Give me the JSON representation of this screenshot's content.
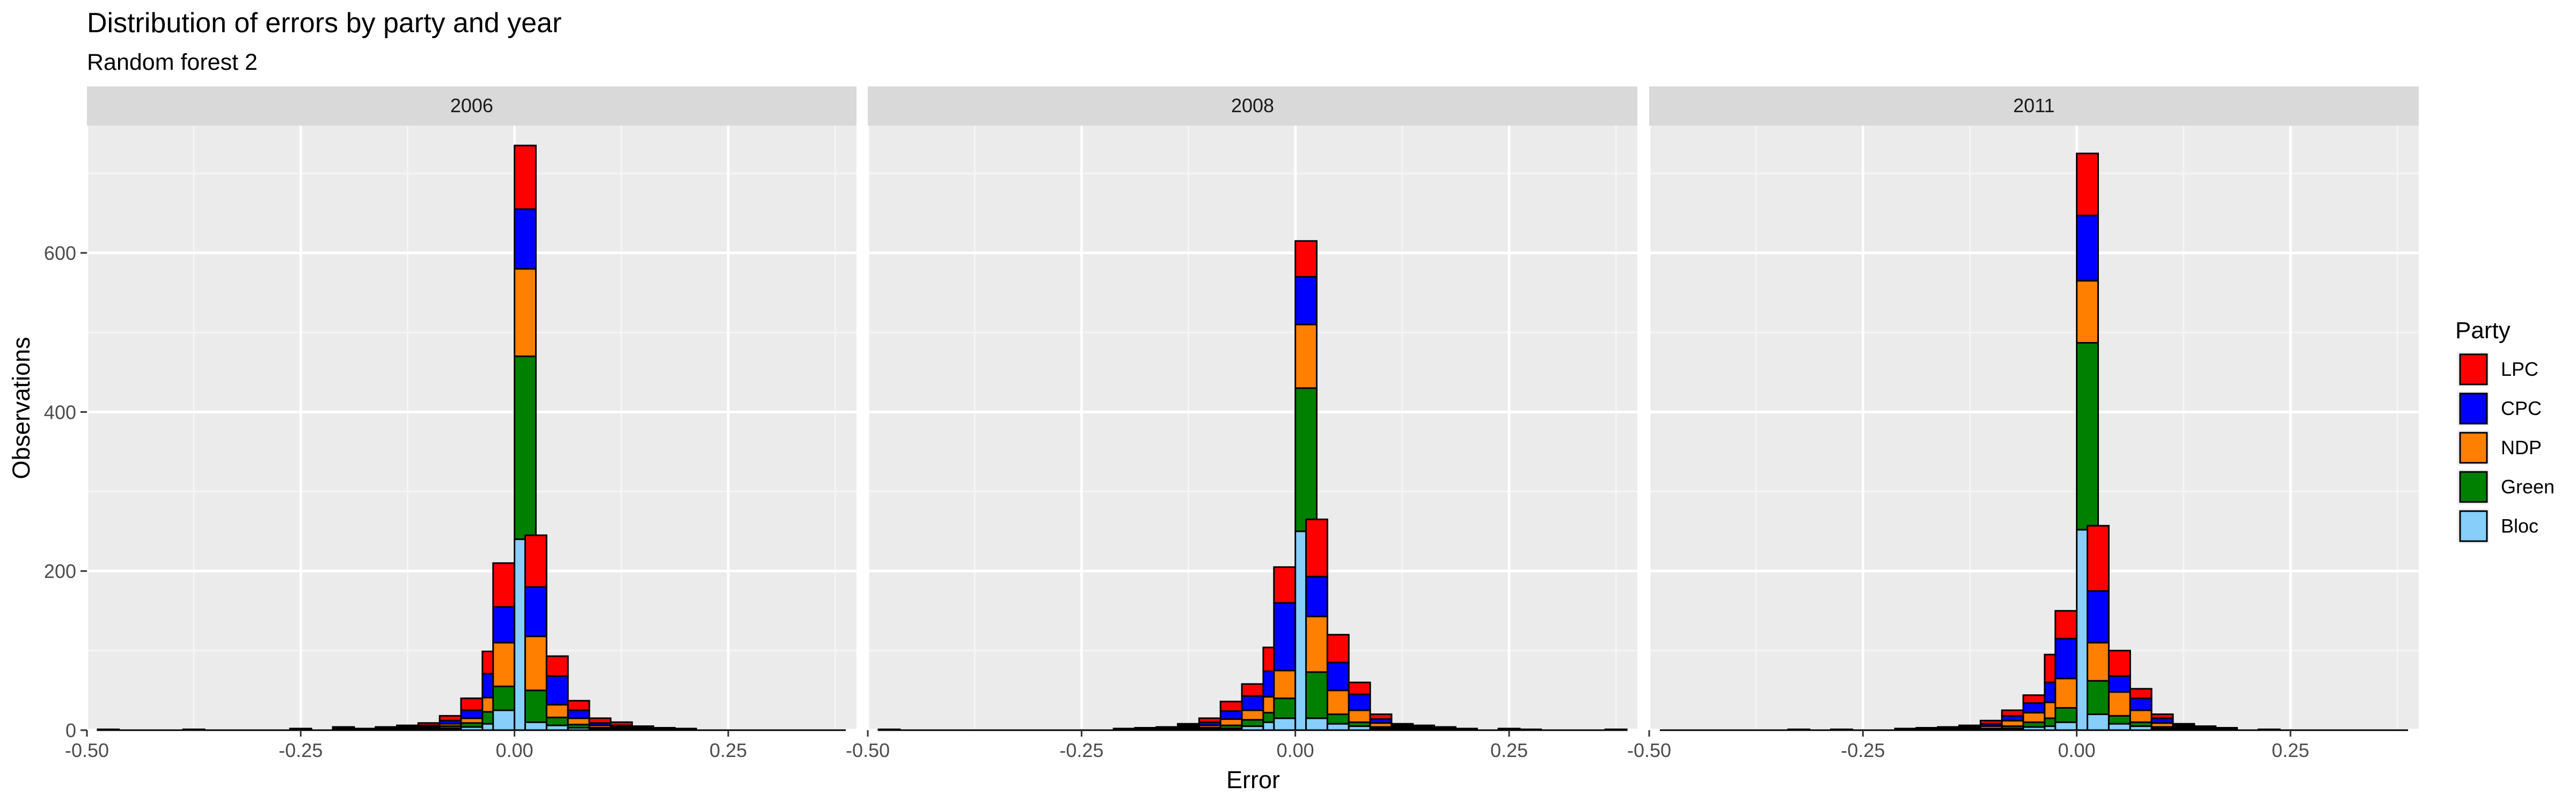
{
  "chart_data": {
    "type": "bar",
    "title": "Distribution of errors by party and year",
    "subtitle": "Random forest 2",
    "xlabel": "Error",
    "ylabel": "Observations",
    "xlim": [
      -0.5,
      0.4
    ],
    "ylim": [
      0,
      760
    ],
    "x_ticks": [
      -0.5,
      -0.25,
      0.0,
      0.25
    ],
    "x_tick_labels": [
      "-0.50",
      "-0.25",
      "0.00",
      "0.25"
    ],
    "y_ticks": [
      0,
      200,
      400,
      600
    ],
    "y_tick_labels": [
      "0",
      "200",
      "400",
      "600"
    ],
    "grid": true,
    "stacked": true,
    "bin_width": 0.025,
    "legend": {
      "title": "Party",
      "position": "right",
      "entries": [
        "LPC",
        "CPC",
        "NDP",
        "Green",
        "Bloc"
      ]
    },
    "series_colors": {
      "LPC": "#ff0000",
      "CPC": "#0000ff",
      "NDP": "#ff7f00",
      "Green": "#008000",
      "Bloc": "#87cefa"
    },
    "stack_order_bottom_to_top": [
      "Bloc",
      "Green",
      "NDP",
      "CPC",
      "LPC"
    ],
    "panels": [
      {
        "facet_label": "2006",
        "bins": [
          {
            "x": -0.475,
            "values": {
              "Bloc": 0,
              "Green": 0,
              "NDP": 0,
              "CPC": 0,
              "LPC": 1
            }
          },
          {
            "x": -0.375,
            "values": {
              "Bloc": 0,
              "Green": 0,
              "NDP": 1,
              "CPC": 0,
              "LPC": 0
            }
          },
          {
            "x": -0.25,
            "values": {
              "Bloc": 0,
              "Green": 0,
              "NDP": 1,
              "CPC": 0,
              "LPC": 1
            }
          },
          {
            "x": -0.2,
            "values": {
              "Bloc": 0,
              "Green": 1,
              "NDP": 1,
              "CPC": 1,
              "LPC": 1
            }
          },
          {
            "x": -0.175,
            "values": {
              "Bloc": 0,
              "Green": 0,
              "NDP": 1,
              "CPC": 0,
              "LPC": 1
            }
          },
          {
            "x": -0.15,
            "values": {
              "Bloc": 0,
              "Green": 1,
              "NDP": 1,
              "CPC": 1,
              "LPC": 1
            }
          },
          {
            "x": -0.125,
            "values": {
              "Bloc": 1,
              "Green": 1,
              "NDP": 1,
              "CPC": 1,
              "LPC": 2
            }
          },
          {
            "x": -0.1,
            "values": {
              "Bloc": 1,
              "Green": 1,
              "NDP": 2,
              "CPC": 2,
              "LPC": 3
            }
          },
          {
            "x": -0.075,
            "values": {
              "Bloc": 2,
              "Green": 3,
              "NDP": 3,
              "CPC": 4,
              "LPC": 6
            }
          },
          {
            "x": -0.05,
            "values": {
              "Bloc": 4,
              "Green": 5,
              "NDP": 6,
              "CPC": 10,
              "LPC": 15
            }
          },
          {
            "x": -0.025,
            "values": {
              "Bloc": 8,
              "Green": 15,
              "NDP": 18,
              "CPC": 30,
              "LPC": 28
            }
          },
          {
            "x": 0.0,
            "values": {
              "Bloc": 25,
              "Green": 30,
              "NDP": 55,
              "CPC": 45,
              "LPC": 55
            }
          },
          {
            "x": 0.0,
            "values": {
              "Bloc": 240,
              "Green": 230,
              "NDP": 110,
              "CPC": 75,
              "LPC": 80
            }
          },
          {
            "x": 0.025,
            "values": {
              "Bloc": 10,
              "Green": 40,
              "NDP": 68,
              "CPC": 62,
              "LPC": 65
            }
          },
          {
            "x": 0.05,
            "values": {
              "Bloc": 6,
              "Green": 10,
              "NDP": 16,
              "CPC": 36,
              "LPC": 25
            }
          },
          {
            "x": 0.075,
            "values": {
              "Bloc": 3,
              "Green": 4,
              "NDP": 8,
              "CPC": 10,
              "LPC": 12
            }
          },
          {
            "x": 0.1,
            "values": {
              "Bloc": 1,
              "Green": 2,
              "NDP": 3,
              "CPC": 3,
              "LPC": 6
            }
          },
          {
            "x": 0.125,
            "values": {
              "Bloc": 1,
              "Green": 1,
              "NDP": 2,
              "CPC": 2,
              "LPC": 4
            }
          },
          {
            "x": 0.15,
            "values": {
              "Bloc": 0,
              "Green": 1,
              "NDP": 1,
              "CPC": 1,
              "LPC": 2
            }
          },
          {
            "x": 0.175,
            "values": {
              "Bloc": 0,
              "Green": 0,
              "NDP": 1,
              "CPC": 1,
              "LPC": 1
            }
          },
          {
            "x": 0.2,
            "values": {
              "Bloc": 0,
              "Green": 0,
              "NDP": 0,
              "CPC": 1,
              "LPC": 1
            }
          }
        ]
      },
      {
        "facet_label": "2008",
        "bins": [
          {
            "x": -0.475,
            "values": {
              "Bloc": 0,
              "Green": 0,
              "NDP": 1,
              "CPC": 0,
              "LPC": 0
            }
          },
          {
            "x": -0.2,
            "values": {
              "Bloc": 0,
              "Green": 0,
              "NDP": 1,
              "CPC": 0,
              "LPC": 1
            }
          },
          {
            "x": -0.175,
            "values": {
              "Bloc": 0,
              "Green": 1,
              "NDP": 1,
              "CPC": 0,
              "LPC": 1
            }
          },
          {
            "x": -0.15,
            "values": {
              "Bloc": 0,
              "Green": 1,
              "NDP": 1,
              "CPC": 1,
              "LPC": 1
            }
          },
          {
            "x": -0.125,
            "values": {
              "Bloc": 1,
              "Green": 1,
              "NDP": 2,
              "CPC": 2,
              "LPC": 2
            }
          },
          {
            "x": -0.1,
            "values": {
              "Bloc": 1,
              "Green": 2,
              "NDP": 3,
              "CPC": 4,
              "LPC": 5
            }
          },
          {
            "x": -0.075,
            "values": {
              "Bloc": 2,
              "Green": 4,
              "NDP": 8,
              "CPC": 10,
              "LPC": 12
            }
          },
          {
            "x": -0.05,
            "values": {
              "Bloc": 5,
              "Green": 8,
              "NDP": 12,
              "CPC": 18,
              "LPC": 15
            }
          },
          {
            "x": -0.025,
            "values": {
              "Bloc": 10,
              "Green": 12,
              "NDP": 20,
              "CPC": 32,
              "LPC": 30
            }
          },
          {
            "x": 0.0,
            "values": {
              "Bloc": 15,
              "Green": 25,
              "NDP": 35,
              "CPC": 85,
              "LPC": 45
            }
          },
          {
            "x": 0.0,
            "values": {
              "Bloc": 250,
              "Green": 180,
              "NDP": 80,
              "CPC": 60,
              "LPC": 45
            }
          },
          {
            "x": 0.025,
            "values": {
              "Bloc": 15,
              "Green": 58,
              "NDP": 70,
              "CPC": 50,
              "LPC": 72
            }
          },
          {
            "x": 0.05,
            "values": {
              "Bloc": 8,
              "Green": 12,
              "NDP": 30,
              "CPC": 35,
              "LPC": 35
            }
          },
          {
            "x": 0.075,
            "values": {
              "Bloc": 5,
              "Green": 5,
              "NDP": 15,
              "CPC": 20,
              "LPC": 15
            }
          },
          {
            "x": 0.1,
            "values": {
              "Bloc": 2,
              "Green": 2,
              "NDP": 5,
              "CPC": 5,
              "LPC": 6
            }
          },
          {
            "x": 0.125,
            "values": {
              "Bloc": 1,
              "Green": 1,
              "NDP": 2,
              "CPC": 2,
              "LPC": 2
            }
          },
          {
            "x": 0.15,
            "values": {
              "Bloc": 1,
              "Green": 1,
              "NDP": 1,
              "CPC": 1,
              "LPC": 2
            }
          },
          {
            "x": 0.175,
            "values": {
              "Bloc": 0,
              "Green": 1,
              "NDP": 1,
              "CPC": 1,
              "LPC": 1
            }
          },
          {
            "x": 0.2,
            "values": {
              "Bloc": 0,
              "Green": 0,
              "NDP": 1,
              "CPC": 1,
              "LPC": 0
            }
          },
          {
            "x": 0.25,
            "values": {
              "Bloc": 0,
              "Green": 0,
              "NDP": 1,
              "CPC": 0,
              "LPC": 1
            }
          },
          {
            "x": 0.275,
            "values": {
              "Bloc": 0,
              "Green": 0,
              "NDP": 0,
              "CPC": 1,
              "LPC": 0
            }
          },
          {
            "x": 0.375,
            "values": {
              "Bloc": 0,
              "Green": 0,
              "NDP": 1,
              "CPC": 0,
              "LPC": 0
            }
          }
        ]
      },
      {
        "facet_label": "2011",
        "bins": [
          {
            "x": -0.325,
            "values": {
              "Bloc": 0,
              "Green": 0,
              "NDP": 1,
              "CPC": 0,
              "LPC": 0
            }
          },
          {
            "x": -0.275,
            "values": {
              "Bloc": 0,
              "Green": 0,
              "NDP": 0,
              "CPC": 1,
              "LPC": 0
            }
          },
          {
            "x": -0.2,
            "values": {
              "Bloc": 0,
              "Green": 0,
              "NDP": 1,
              "CPC": 0,
              "LPC": 1
            }
          },
          {
            "x": -0.175,
            "values": {
              "Bloc": 0,
              "Green": 1,
              "NDP": 1,
              "CPC": 1,
              "LPC": 0
            }
          },
          {
            "x": -0.15,
            "values": {
              "Bloc": 0,
              "Green": 1,
              "NDP": 1,
              "CPC": 1,
              "LPC": 1
            }
          },
          {
            "x": -0.125,
            "values": {
              "Bloc": 1,
              "Green": 1,
              "NDP": 1,
              "CPC": 2,
              "LPC": 1
            }
          },
          {
            "x": -0.1,
            "values": {
              "Bloc": 1,
              "Green": 1,
              "NDP": 3,
              "CPC": 3,
              "LPC": 4
            }
          },
          {
            "x": -0.075,
            "values": {
              "Bloc": 2,
              "Green": 3,
              "NDP": 7,
              "CPC": 6,
              "LPC": 7
            }
          },
          {
            "x": -0.05,
            "values": {
              "Bloc": 4,
              "Green": 6,
              "NDP": 12,
              "CPC": 12,
              "LPC": 10
            }
          },
          {
            "x": -0.025,
            "values": {
              "Bloc": 5,
              "Green": 10,
              "NDP": 20,
              "CPC": 25,
              "LPC": 35
            }
          },
          {
            "x": 0.0,
            "values": {
              "Bloc": 10,
              "Green": 18,
              "NDP": 37,
              "CPC": 50,
              "LPC": 35
            }
          },
          {
            "x": 0.0,
            "values": {
              "Bloc": 252,
              "Green": 235,
              "NDP": 78,
              "CPC": 82,
              "LPC": 78
            }
          },
          {
            "x": 0.025,
            "values": {
              "Bloc": 20,
              "Green": 42,
              "NDP": 48,
              "CPC": 65,
              "LPC": 82
            }
          },
          {
            "x": 0.05,
            "values": {
              "Bloc": 8,
              "Green": 10,
              "NDP": 30,
              "CPC": 20,
              "LPC": 32
            }
          },
          {
            "x": 0.075,
            "values": {
              "Bloc": 5,
              "Green": 5,
              "NDP": 15,
              "CPC": 15,
              "LPC": 12
            }
          },
          {
            "x": 0.1,
            "values": {
              "Bloc": 2,
              "Green": 2,
              "NDP": 5,
              "CPC": 6,
              "LPC": 5
            }
          },
          {
            "x": 0.125,
            "values": {
              "Bloc": 1,
              "Green": 1,
              "NDP": 2,
              "CPC": 2,
              "LPC": 2
            }
          },
          {
            "x": 0.15,
            "values": {
              "Bloc": 0,
              "Green": 1,
              "NDP": 1,
              "CPC": 1,
              "LPC": 2
            }
          },
          {
            "x": 0.175,
            "values": {
              "Bloc": 0,
              "Green": 0,
              "NDP": 1,
              "CPC": 1,
              "LPC": 1
            }
          },
          {
            "x": 0.225,
            "values": {
              "Bloc": 0,
              "Green": 0,
              "NDP": 1,
              "CPC": 0,
              "LPC": 0
            }
          }
        ]
      }
    ]
  }
}
